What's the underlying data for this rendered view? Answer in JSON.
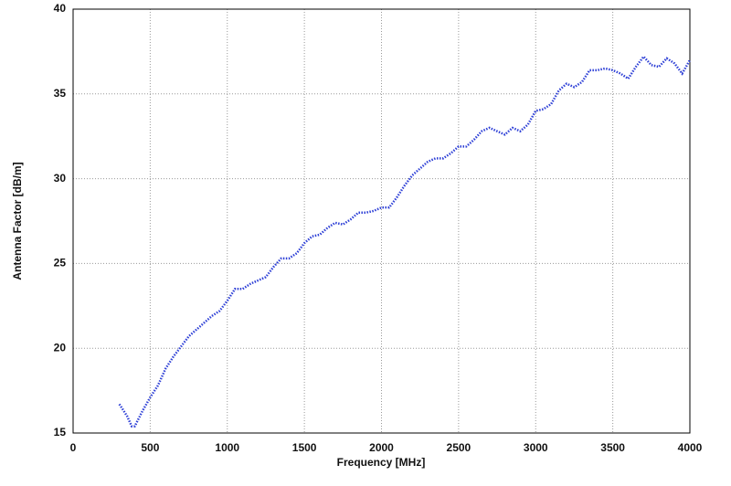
{
  "chart_data": {
    "type": "line",
    "x_label": "Frequency [MHz]",
    "y_label": "Antenna Factor [dB/m]",
    "x": [
      300,
      350,
      380,
      400,
      450,
      500,
      550,
      600,
      650,
      700,
      750,
      800,
      850,
      900,
      950,
      1000,
      1050,
      1100,
      1150,
      1200,
      1250,
      1300,
      1350,
      1400,
      1450,
      1500,
      1550,
      1600,
      1650,
      1700,
      1750,
      1800,
      1850,
      1900,
      1950,
      2000,
      2050,
      2100,
      2150,
      2200,
      2250,
      2300,
      2350,
      2400,
      2450,
      2500,
      2550,
      2600,
      2650,
      2700,
      2750,
      2800,
      2850,
      2900,
      2950,
      3000,
      3050,
      3100,
      3150,
      3200,
      3250,
      3300,
      3350,
      3400,
      3450,
      3500,
      3550,
      3600,
      3650,
      3700,
      3750,
      3800,
      3850,
      3900,
      3950,
      4000
    ],
    "series": [
      {
        "color": "#2d3fd6",
        "values": [
          16.7,
          16.0,
          15.4,
          15.4,
          16.3,
          17.1,
          17.8,
          18.8,
          19.5,
          20.1,
          20.7,
          21.1,
          21.5,
          21.9,
          22.2,
          22.8,
          23.5,
          23.5,
          23.8,
          24.0,
          24.2,
          24.8,
          25.3,
          25.3,
          25.6,
          26.2,
          26.6,
          26.7,
          27.1,
          27.4,
          27.3,
          27.6,
          28.0,
          28.0,
          28.1,
          28.3,
          28.3,
          28.9,
          29.6,
          30.2,
          30.6,
          31.0,
          31.2,
          31.2,
          31.5,
          31.9,
          31.9,
          32.3,
          32.8,
          33.0,
          32.8,
          32.6,
          33.0,
          32.8,
          33.2,
          34.0,
          34.1,
          34.4,
          35.2,
          35.6,
          35.4,
          35.7,
          36.4,
          36.4,
          36.5,
          36.4,
          36.2,
          35.9,
          36.6,
          37.2,
          36.7,
          36.6,
          37.1,
          36.8,
          36.2,
          37.0
        ]
      }
    ],
    "xlim": [
      0,
      4000
    ],
    "xticks": [
      0,
      500,
      1000,
      1500,
      2000,
      2500,
      3000,
      3500,
      4000
    ],
    "ylim": [
      15,
      40
    ],
    "yticks": [
      15,
      20,
      25,
      30,
      35,
      40
    ],
    "grid": true
  }
}
